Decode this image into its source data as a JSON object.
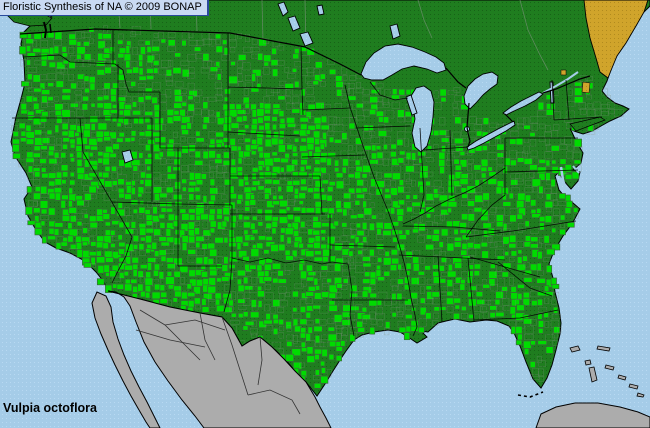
{
  "header": {
    "title": "Floristic Synthesis of NA © 2009 BONAP"
  },
  "footer": {
    "species_name": "Vulpia octoflora"
  },
  "map": {
    "colors": {
      "water": "#A5CCE8",
      "water_dot": "#B8D9F2",
      "state_presence_green": "#1F7D1F",
      "state_presence_dot": "#176217",
      "county_presence_green": "#00DB00",
      "county_line": "#3C663C",
      "faint_county_line": "#7D8D7D",
      "adventive_gold": "#D0A42B",
      "adventive_gold_dot": "#B18A1E",
      "outside_land_gray": "#ACACAC",
      "boundary_black": "#000000",
      "canada_district_line": "#6F8F6F",
      "mexico_state_line": "#333333",
      "title_box_bg": "#C9DAF3",
      "title_box_border": "#2A4A9C",
      "label_text": "#000000"
    }
  }
}
